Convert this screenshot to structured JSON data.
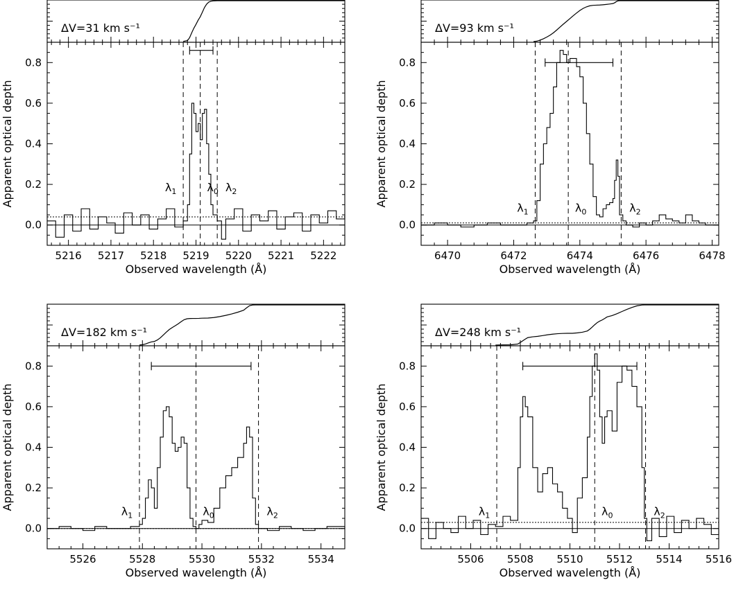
{
  "chart_data": [
    {
      "type": "line",
      "id": "p1",
      "xlabel": "Observed wavelength (Å)",
      "ylabel": "Apparent optical depth",
      "xlim": [
        5215.5,
        5222.5
      ],
      "ylim": [
        -0.1,
        0.9
      ],
      "xticks": [
        5216,
        5217,
        5218,
        5219,
        5220,
        5221,
        5222
      ],
      "yticks": [
        0.0,
        0.2,
        0.4,
        0.6,
        0.8
      ],
      "delta_v_label": "ΔV=31 km s⁻¹",
      "lambda1": 5218.7,
      "lambda0": 5219.1,
      "lambda2": 5219.5,
      "width_bar": [
        5218.85,
        5219.4
      ],
      "width_bar_y": 0.86,
      "noise_level": 0.04,
      "lambda_label_y": 0.2,
      "x": [
        5215.5,
        5215.7,
        5215.9,
        5216.1,
        5216.3,
        5216.5,
        5216.7,
        5216.9,
        5217.1,
        5217.3,
        5217.5,
        5217.7,
        5217.9,
        5218.1,
        5218.3,
        5218.5,
        5218.7,
        5218.8,
        5218.85,
        5218.9,
        5218.95,
        5219.0,
        5219.05,
        5219.1,
        5219.15,
        5219.2,
        5219.25,
        5219.3,
        5219.35,
        5219.4,
        5219.5,
        5219.6,
        5219.7,
        5219.9,
        5220.1,
        5220.3,
        5220.5,
        5220.7,
        5220.9,
        5221.1,
        5221.3,
        5221.5,
        5221.7,
        5221.9,
        5222.1,
        5222.3,
        5222.5
      ],
      "y": [
        0.02,
        -0.06,
        0.05,
        -0.03,
        0.08,
        -0.02,
        0.04,
        0.01,
        -0.04,
        0.06,
        0.0,
        0.05,
        -0.02,
        0.03,
        0.08,
        -0.01,
        0.02,
        0.1,
        0.35,
        0.6,
        0.55,
        0.46,
        0.5,
        0.42,
        0.55,
        0.57,
        0.4,
        0.25,
        0.1,
        0.05,
        0.02,
        -0.07,
        0.03,
        0.08,
        -0.03,
        0.05,
        0.02,
        0.07,
        -0.02,
        0.04,
        0.06,
        -0.03,
        0.05,
        0.01,
        0.07,
        0.03,
        0.05
      ]
    },
    {
      "type": "line",
      "id": "p2",
      "xlabel": "Observed wavelength (Å)",
      "ylabel": "Apparent optical depth",
      "xlim": [
        6469.2,
        6478.2
      ],
      "ylim": [
        -0.1,
        0.9
      ],
      "xticks": [
        6470,
        6472,
        6474,
        6476,
        6478
      ],
      "yticks": [
        0.0,
        0.2,
        0.4,
        0.6,
        0.8
      ],
      "delta_v_label": "ΔV=93 km s⁻¹",
      "lambda1": 6472.65,
      "lambda0": 6473.65,
      "lambda2": 6475.25,
      "width_bar": [
        6472.95,
        6475.0
      ],
      "width_bar_y": 0.8,
      "noise_level": 0.01,
      "lambda_label_y": 0.1,
      "x": [
        6469.2,
        6469.6,
        6470.0,
        6470.4,
        6470.8,
        6471.2,
        6471.6,
        6472.0,
        6472.4,
        6472.6,
        6472.7,
        6472.8,
        6472.9,
        6473.0,
        6473.1,
        6473.2,
        6473.3,
        6473.4,
        6473.5,
        6473.6,
        6473.7,
        6473.8,
        6473.9,
        6474.0,
        6474.1,
        6474.2,
        6474.3,
        6474.4,
        6474.5,
        6474.6,
        6474.7,
        6474.8,
        6474.9,
        6475.0,
        6475.05,
        6475.1,
        6475.15,
        6475.2,
        6475.3,
        6475.4,
        6475.6,
        6475.8,
        6476.0,
        6476.2,
        6476.4,
        6476.6,
        6476.8,
        6477.0,
        6477.2,
        6477.4,
        6477.6,
        6477.8,
        6478.2
      ],
      "y": [
        0.0,
        0.01,
        0.0,
        -0.01,
        0.0,
        0.01,
        0.0,
        0.0,
        0.01,
        0.02,
        0.12,
        0.3,
        0.4,
        0.48,
        0.55,
        0.68,
        0.8,
        0.86,
        0.84,
        0.8,
        0.82,
        0.82,
        0.78,
        0.73,
        0.6,
        0.45,
        0.3,
        0.14,
        0.05,
        0.04,
        0.08,
        0.1,
        0.11,
        0.13,
        0.22,
        0.32,
        0.24,
        0.05,
        0.02,
        0.0,
        -0.01,
        0.01,
        0.0,
        0.02,
        0.05,
        0.03,
        0.02,
        0.01,
        0.05,
        0.02,
        0.01,
        0.0,
        0.0
      ]
    },
    {
      "type": "line",
      "id": "p3",
      "xlabel": "Observed wavelength (Å)",
      "ylabel": "Apparent optical depth",
      "xlim": [
        5524.8,
        5534.8
      ],
      "ylim": [
        -0.1,
        0.9
      ],
      "xticks": [
        5526,
        5528,
        5530,
        5532,
        5534
      ],
      "yticks": [
        0.0,
        0.2,
        0.4,
        0.6,
        0.8
      ],
      "delta_v_label": "ΔV=182 km s⁻¹",
      "lambda1": 5527.9,
      "lambda0": 5529.8,
      "lambda2": 5531.9,
      "width_bar": [
        5528.3,
        5531.65
      ],
      "width_bar_y": 0.8,
      "noise_level": 0.0,
      "lambda_label_y": 0.1,
      "x": [
        5524.8,
        5525.2,
        5525.6,
        5526.0,
        5526.4,
        5526.8,
        5527.2,
        5527.6,
        5527.9,
        5528.0,
        5528.1,
        5528.2,
        5528.3,
        5528.4,
        5528.5,
        5528.6,
        5528.7,
        5528.8,
        5528.9,
        5529.0,
        5529.1,
        5529.2,
        5529.3,
        5529.4,
        5529.5,
        5529.6,
        5529.7,
        5529.8,
        5529.9,
        5530.0,
        5530.2,
        5530.4,
        5530.6,
        5530.8,
        5531.0,
        5531.2,
        5531.4,
        5531.5,
        5531.6,
        5531.7,
        5531.8,
        5531.9,
        5532.2,
        5532.6,
        5533.0,
        5533.4,
        5533.8,
        5534.2,
        5534.8
      ],
      "y": [
        0.0,
        0.01,
        0.0,
        -0.01,
        0.01,
        0.0,
        0.0,
        0.01,
        0.02,
        0.05,
        0.15,
        0.24,
        0.2,
        0.1,
        0.3,
        0.45,
        0.58,
        0.6,
        0.55,
        0.42,
        0.38,
        0.4,
        0.45,
        0.42,
        0.2,
        0.05,
        0.01,
        0.0,
        0.02,
        0.04,
        0.03,
        0.1,
        0.2,
        0.26,
        0.3,
        0.35,
        0.42,
        0.5,
        0.45,
        0.15,
        0.02,
        0.0,
        -0.01,
        0.01,
        0.0,
        -0.01,
        0.0,
        0.01,
        0.0
      ]
    },
    {
      "type": "line",
      "id": "p4",
      "xlabel": "Observed wavelength (Å)",
      "ylabel": "Apparent optical depth",
      "xlim": [
        5504.0,
        5516.0
      ],
      "ylim": [
        -0.1,
        0.9
      ],
      "xticks": [
        5506,
        5508,
        5510,
        5512,
        5514,
        5516
      ],
      "yticks": [
        0.0,
        0.2,
        0.4,
        0.6,
        0.8
      ],
      "delta_v_label": "ΔV=248 km s⁻¹",
      "lambda1": 5507.05,
      "lambda0": 5511.0,
      "lambda2": 5513.05,
      "width_bar": [
        5508.1,
        5512.7
      ],
      "width_bar_y": 0.8,
      "noise_level": 0.03,
      "lambda_label_y": 0.1,
      "x": [
        5504.0,
        5504.3,
        5504.6,
        5504.9,
        5505.2,
        5505.5,
        5505.8,
        5506.1,
        5506.4,
        5506.7,
        5507.0,
        5507.3,
        5507.6,
        5507.9,
        5508.0,
        5508.1,
        5508.2,
        5508.3,
        5508.5,
        5508.7,
        5508.9,
        5509.1,
        5509.3,
        5509.5,
        5509.7,
        5509.9,
        5510.1,
        5510.3,
        5510.5,
        5510.7,
        5510.8,
        5510.9,
        5511.0,
        5511.1,
        5511.2,
        5511.3,
        5511.4,
        5511.5,
        5511.7,
        5511.9,
        5512.1,
        5512.3,
        5512.5,
        5512.7,
        5512.9,
        5513.0,
        5513.1,
        5513.3,
        5513.6,
        5513.9,
        5514.2,
        5514.5,
        5514.8,
        5515.1,
        5515.4,
        5515.7,
        5516.0
      ],
      "y": [
        0.05,
        -0.05,
        0.03,
        0.0,
        -0.02,
        0.06,
        0.0,
        0.04,
        -0.03,
        0.02,
        0.01,
        0.06,
        0.04,
        0.3,
        0.55,
        0.65,
        0.6,
        0.55,
        0.3,
        0.18,
        0.27,
        0.3,
        0.22,
        0.18,
        0.1,
        0.05,
        -0.02,
        0.15,
        0.25,
        0.45,
        0.65,
        0.8,
        0.86,
        0.78,
        0.55,
        0.42,
        0.55,
        0.58,
        0.48,
        0.72,
        0.8,
        0.78,
        0.7,
        0.6,
        0.3,
        0.05,
        -0.06,
        0.05,
        -0.04,
        0.06,
        -0.02,
        0.04,
        0.0,
        0.05,
        0.02,
        -0.03,
        0.04
      ]
    }
  ]
}
